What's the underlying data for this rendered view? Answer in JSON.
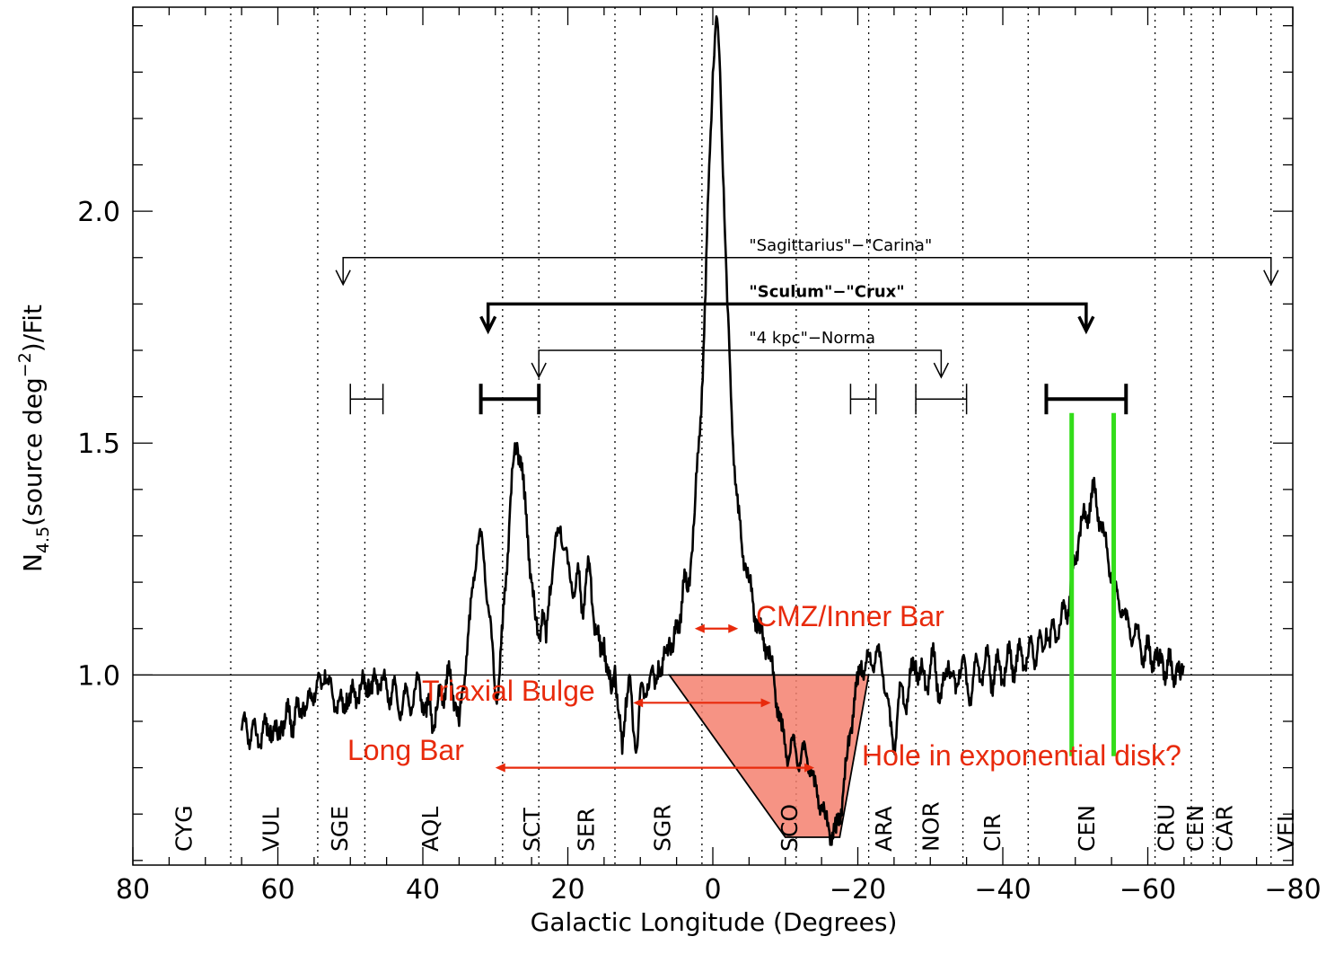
{
  "chart_data": {
    "type": "line",
    "xlabel": "Galactic Longitude (Degrees)",
    "ylabel": "N4.5(source deg-2)/Fit",
    "ylabel_parts": {
      "main": "N",
      "sub": "4.5",
      "mid": "(source deg",
      "sup": "−2",
      "end": ")/Fit"
    },
    "xlim": [
      80,
      -80
    ],
    "ylim": [
      0.59,
      2.44
    ],
    "x_ticks": [
      {
        "v": 80,
        "label": "80"
      },
      {
        "v": 60,
        "label": "60"
      },
      {
        "v": 40,
        "label": "40"
      },
      {
        "v": 20,
        "label": "20"
      },
      {
        "v": 0,
        "label": "0"
      },
      {
        "v": -20,
        "label": "−20"
      },
      {
        "v": -40,
        "label": "−40"
      },
      {
        "v": -60,
        "label": "−60"
      },
      {
        "v": -80,
        "label": "−80"
      }
    ],
    "y_ticks": [
      {
        "v": 1.0,
        "label": "1.0"
      },
      {
        "v": 1.5,
        "label": "1.5"
      },
      {
        "v": 2.0,
        "label": "2.0"
      }
    ],
    "reference_line": 1.0,
    "constellation_boundaries": [
      66.5,
      54.5,
      48,
      29,
      24,
      13.5,
      1.5,
      -11.5,
      -21.5,
      -28,
      -34.5,
      -43.5,
      -61,
      -66,
      -69,
      -77
    ],
    "constellations": [
      {
        "name": "CYG",
        "x": 73
      },
      {
        "name": "VUL",
        "x": 61
      },
      {
        "name": "SGE",
        "x": 51.5
      },
      {
        "name": "AQL",
        "x": 39
      },
      {
        "name": "SCT",
        "x": 25
      },
      {
        "name": "SER",
        "x": 17.5
      },
      {
        "name": "SGR",
        "x": 7
      },
      {
        "name": "SCO",
        "x": -10.5
      },
      {
        "name": "ARA",
        "x": -23.5
      },
      {
        "name": "NOR",
        "x": -30
      },
      {
        "name": "CIR",
        "x": -38.5
      },
      {
        "name": "CEN",
        "x": -51.5
      },
      {
        "name": "CRU",
        "x": -62.5
      },
      {
        "name": "CEN",
        "x": -66.5
      },
      {
        "name": "CAR",
        "x": -70.5
      },
      {
        "name": "VEL",
        "x": -79
      }
    ],
    "series": [
      {
        "values_xy": [
          [
            65,
            0.88
          ],
          [
            64.5,
            0.9
          ],
          [
            64,
            0.86
          ],
          [
            63.5,
            0.89
          ],
          [
            63,
            0.87
          ],
          [
            62.5,
            0.85
          ],
          [
            62,
            0.9
          ],
          [
            61.5,
            0.87
          ],
          [
            61,
            0.89
          ],
          [
            60.5,
            0.88
          ],
          [
            60,
            0.86
          ],
          [
            59.5,
            0.9
          ],
          [
            59,
            0.9
          ],
          [
            58.5,
            0.92
          ],
          [
            58,
            0.89
          ],
          [
            57.5,
            0.93
          ],
          [
            57,
            0.91
          ],
          [
            56.5,
            0.94
          ],
          [
            56,
            0.93
          ],
          [
            55.5,
            0.95
          ],
          [
            55,
            0.96
          ],
          [
            54.5,
            0.99
          ],
          [
            54,
            0.97
          ],
          [
            53.5,
            1.01
          ],
          [
            53,
            0.98
          ],
          [
            52.5,
            0.96
          ],
          [
            52,
            0.93
          ],
          [
            51.5,
            0.95
          ],
          [
            51,
            0.92
          ],
          [
            50.5,
            0.96
          ],
          [
            50,
            0.94
          ],
          [
            49.5,
            0.97
          ],
          [
            49,
            0.95
          ],
          [
            48.5,
            0.98
          ],
          [
            48,
            0.97
          ],
          [
            47.5,
            0.99
          ],
          [
            47,
            0.96
          ],
          [
            46.5,
            1.0
          ],
          [
            46,
            0.98
          ],
          [
            45.5,
            0.99
          ],
          [
            45,
            0.97
          ],
          [
            44.5,
            0.95
          ],
          [
            44,
            0.98
          ],
          [
            43.5,
            0.94
          ],
          [
            43,
            0.92
          ],
          [
            42.5,
            0.96
          ],
          [
            42,
            0.95
          ],
          [
            41.5,
            0.93
          ],
          [
            41,
            0.97
          ],
          [
            40.5,
            0.99
          ],
          [
            40,
            0.94
          ],
          [
            39.5,
            0.91
          ],
          [
            39,
            0.95
          ],
          [
            38.5,
            0.88
          ],
          [
            38,
            0.93
          ],
          [
            37.5,
            0.97
          ],
          [
            37,
            0.96
          ],
          [
            36.5,
            1.0
          ],
          [
            36,
            0.98
          ],
          [
            35.5,
            0.94
          ],
          [
            35,
            0.89
          ],
          [
            34.5,
            0.97
          ],
          [
            34,
            1.04
          ],
          [
            33.5,
            1.12
          ],
          [
            33,
            1.21
          ],
          [
            32.5,
            1.28
          ],
          [
            32,
            1.3
          ],
          [
            31.5,
            1.24
          ],
          [
            31,
            1.15
          ],
          [
            30.5,
            1.08
          ],
          [
            30,
            0.95
          ],
          [
            29.5,
            0.99
          ],
          [
            29,
            1.1
          ],
          [
            28.5,
            1.22
          ],
          [
            28,
            1.35
          ],
          [
            27.5,
            1.46
          ],
          [
            27,
            1.5
          ],
          [
            26.5,
            1.47
          ],
          [
            26,
            1.38
          ],
          [
            25.5,
            1.3
          ],
          [
            25,
            1.2
          ],
          [
            24.5,
            1.12
          ],
          [
            24,
            1.08
          ],
          [
            23.5,
            1.14
          ],
          [
            23,
            1.07
          ],
          [
            22.5,
            1.19
          ],
          [
            22,
            1.24
          ],
          [
            21.5,
            1.3
          ],
          [
            21,
            1.32
          ],
          [
            20.5,
            1.27
          ],
          [
            20,
            1.24
          ],
          [
            19.5,
            1.2
          ],
          [
            19,
            1.18
          ],
          [
            18.5,
            1.22
          ],
          [
            18,
            1.14
          ],
          [
            17.5,
            1.2
          ],
          [
            17,
            1.24
          ],
          [
            16.5,
            1.13
          ],
          [
            16,
            1.1
          ],
          [
            15.5,
            1.04
          ],
          [
            15,
            1.08
          ],
          [
            14.5,
            1.0
          ],
          [
            14,
            0.96
          ],
          [
            13.5,
            1.02
          ],
          [
            13,
            0.92
          ],
          [
            12.5,
            0.83
          ],
          [
            12,
            0.95
          ],
          [
            11.5,
            1.0
          ],
          [
            11,
            0.88
          ],
          [
            10.5,
            0.84
          ],
          [
            10,
            0.97
          ],
          [
            9.5,
            0.95
          ],
          [
            9,
            0.98
          ],
          [
            8.5,
            1.01
          ],
          [
            8,
            0.97
          ],
          [
            7.5,
            1.03
          ],
          [
            7,
            1.0
          ],
          [
            6.5,
            1.05
          ],
          [
            6,
            1.08
          ],
          [
            5.5,
            1.05
          ],
          [
            5,
            1.1
          ],
          [
            4.5,
            1.13
          ],
          [
            4,
            1.2
          ],
          [
            3.5,
            1.18
          ],
          [
            3,
            1.25
          ],
          [
            2.5,
            1.35
          ],
          [
            2,
            1.48
          ],
          [
            1.5,
            1.62
          ],
          [
            1,
            1.82
          ],
          [
            0.5,
            2.1
          ],
          [
            0,
            2.3
          ],
          [
            -0.5,
            2.42
          ],
          [
            -1,
            2.3
          ],
          [
            -1.5,
            2.05
          ],
          [
            -2,
            1.8
          ],
          [
            -2.5,
            1.6
          ],
          [
            -3,
            1.45
          ],
          [
            -3.5,
            1.35
          ],
          [
            -4,
            1.28
          ],
          [
            -4.5,
            1.24
          ],
          [
            -5,
            1.2
          ],
          [
            -5.5,
            1.16
          ],
          [
            -6,
            1.12
          ],
          [
            -6.5,
            1.09
          ],
          [
            -7,
            1.08
          ],
          [
            -7.5,
            1.06
          ],
          [
            -8,
            1.03
          ],
          [
            -8.5,
            0.98
          ],
          [
            -9,
            0.93
          ],
          [
            -9.5,
            0.88
          ],
          [
            -10,
            0.85
          ],
          [
            -10.5,
            0.82
          ],
          [
            -11,
            0.86
          ],
          [
            -11.5,
            0.83
          ],
          [
            -12,
            0.81
          ],
          [
            -12.5,
            0.84
          ],
          [
            -13,
            0.82
          ],
          [
            -13.5,
            0.8
          ],
          [
            -14,
            0.76
          ],
          [
            -14.5,
            0.74
          ],
          [
            -15,
            0.72
          ],
          [
            -15.5,
            0.69
          ],
          [
            -16,
            0.67
          ],
          [
            -16.5,
            0.66
          ],
          [
            -17,
            0.66
          ],
          [
            -17.5,
            0.7
          ],
          [
            -18,
            0.75
          ],
          [
            -18.5,
            0.82
          ],
          [
            -19,
            0.88
          ],
          [
            -19.5,
            0.95
          ],
          [
            -20,
            0.98
          ],
          [
            -20.5,
            1.03
          ],
          [
            -21,
            1.01
          ],
          [
            -21.5,
            1.04
          ],
          [
            -22,
            1.02
          ],
          [
            -22.5,
            1.05
          ],
          [
            -23,
            1.04
          ],
          [
            -23.5,
            1.0
          ],
          [
            -24,
            0.96
          ],
          [
            -24.5,
            0.89
          ],
          [
            -25,
            0.84
          ],
          [
            -25.5,
            0.92
          ],
          [
            -26,
            0.98
          ],
          [
            -26.5,
            0.93
          ],
          [
            -27,
            0.97
          ],
          [
            -27.5,
            1.01
          ],
          [
            -28,
            1.03
          ],
          [
            -28.5,
            0.99
          ],
          [
            -29,
            1.01
          ],
          [
            -29.5,
            0.97
          ],
          [
            -30,
            1.02
          ],
          [
            -30.5,
            1.04
          ],
          [
            -31,
            0.98
          ],
          [
            -31.5,
            0.95
          ],
          [
            -32,
            0.99
          ],
          [
            -32.5,
            1.03
          ],
          [
            -33,
            1.0
          ],
          [
            -33.5,
            0.96
          ],
          [
            -34,
            1.01
          ],
          [
            -34.5,
            1.04
          ],
          [
            -35,
            0.98
          ],
          [
            -35.5,
            0.95
          ],
          [
            -36,
            1.0
          ],
          [
            -36.5,
            1.03
          ],
          [
            -37,
            0.99
          ],
          [
            -37.5,
            1.02
          ],
          [
            -38,
            1.04
          ],
          [
            -38.5,
            0.98
          ],
          [
            -39,
            1.01
          ],
          [
            -39.5,
            1.03
          ],
          [
            -40,
            0.99
          ],
          [
            -40.5,
            1.02
          ],
          [
            -41,
            1.05
          ],
          [
            -41.5,
            1.01
          ],
          [
            -42,
            1.03
          ],
          [
            -42.5,
            1.06
          ],
          [
            -43,
            1.02
          ],
          [
            -43.5,
            1.04
          ],
          [
            -44,
            1.07
          ],
          [
            -44.5,
            1.03
          ],
          [
            -45,
            1.08
          ],
          [
            -45.5,
            1.05
          ],
          [
            -46,
            1.1
          ],
          [
            -46.5,
            1.06
          ],
          [
            -47,
            1.12
          ],
          [
            -47.5,
            1.08
          ],
          [
            -48,
            1.11
          ],
          [
            -48.5,
            1.15
          ],
          [
            -49,
            1.14
          ],
          [
            -49.5,
            1.2
          ],
          [
            -50,
            1.25
          ],
          [
            -50.5,
            1.3
          ],
          [
            -51,
            1.34
          ],
          [
            -51.5,
            1.33
          ],
          [
            -52,
            1.37
          ],
          [
            -52.5,
            1.4
          ],
          [
            -53,
            1.36
          ],
          [
            -53.5,
            1.33
          ],
          [
            -54,
            1.3
          ],
          [
            -54.5,
            1.25
          ],
          [
            -55,
            1.22
          ],
          [
            -55.5,
            1.18
          ],
          [
            -56,
            1.16
          ],
          [
            -56.5,
            1.14
          ],
          [
            -57,
            1.12
          ],
          [
            -57.5,
            1.1
          ],
          [
            -58,
            1.08
          ],
          [
            -58.5,
            1.1
          ],
          [
            -59,
            1.06
          ],
          [
            -59.5,
            1.04
          ],
          [
            -60,
            1.06
          ],
          [
            -60.5,
            1.03
          ],
          [
            -61,
            1.05
          ],
          [
            -61.5,
            1.02
          ],
          [
            -62,
            1.04
          ],
          [
            -62.5,
            1.0
          ],
          [
            -63,
            1.03
          ],
          [
            -63.5,
            1.0
          ],
          [
            -64,
            1.02
          ],
          [
            -64.5,
            0.99
          ],
          [
            -65,
            1.02
          ]
        ]
      }
    ],
    "arm_arrows": [
      {
        "label": "\"Sagittarius\"−\"Carina\"",
        "x1": 51,
        "x2": -77,
        "y": 1.9,
        "bold": false
      },
      {
        "label": "\"Sculum\"−\"Crux\"",
        "x1": 31,
        "x2": -51.5,
        "y": 1.8,
        "bold": true
      },
      {
        "label": "\"4 kpc\"−Norma",
        "x1": 24,
        "x2": -31.5,
        "y": 1.7,
        "bold": false
      }
    ],
    "tangent_ranges": [
      {
        "x1": 50,
        "x2": 45.5,
        "bold": false
      },
      {
        "x1": 32,
        "x2": 24,
        "bold": true
      },
      {
        "x1": -19,
        "x2": -22.5,
        "bold": false
      },
      {
        "x1": -28,
        "x2": -35,
        "bold": false
      },
      {
        "x1": -46,
        "x2": -57,
        "bold": true
      }
    ],
    "green_lines": [
      -49.5,
      -55.3
    ],
    "shaded_region": {
      "top": [
        6,
        -21.5
      ],
      "bottom": [
        -10,
        -17.5
      ],
      "y_top": 1.0,
      "y_bottom": 0.65
    },
    "annotations": [
      {
        "label": "CMZ/Inner Bar",
        "x1": 2.5,
        "x2": -3.5,
        "y": 1.1
      },
      {
        "label": "Triaxial Bulge",
        "x1": 11,
        "x2": -8,
        "y": 0.94
      },
      {
        "label": "Long Bar",
        "x1": 30,
        "x2": -14,
        "y": 0.8
      },
      {
        "label": "Hole in exponential disk?"
      }
    ]
  }
}
